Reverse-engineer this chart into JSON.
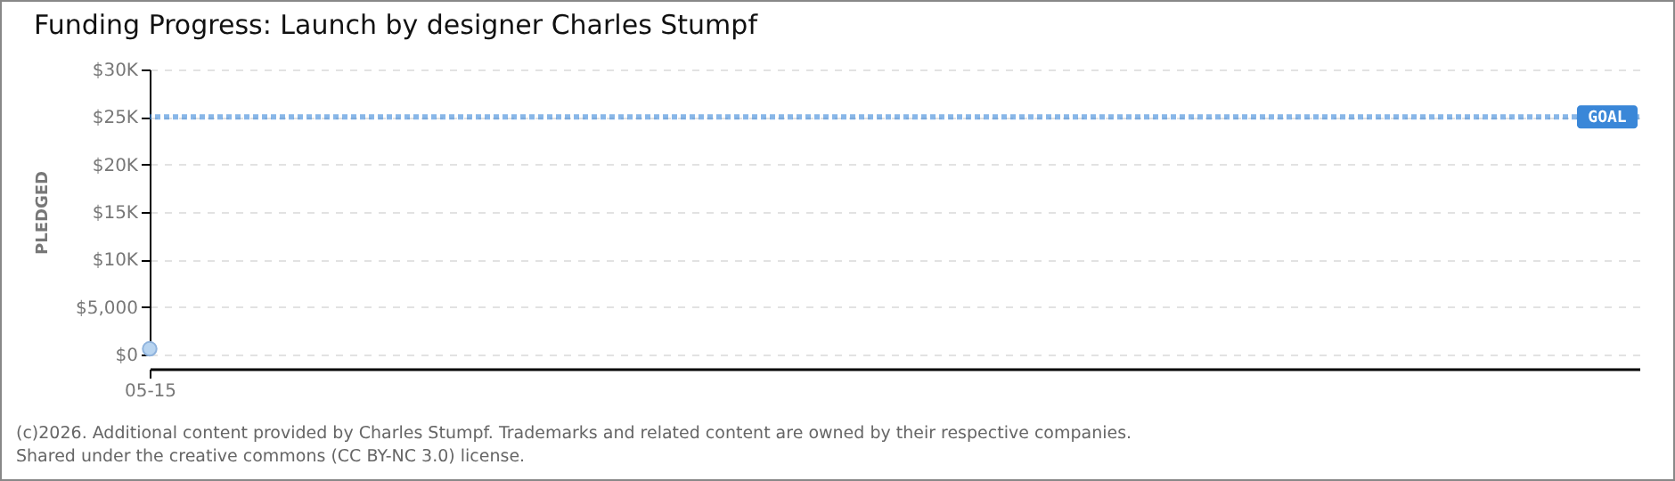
{
  "chart_data": {
    "type": "scatter",
    "title": "Funding Progress: Launch by designer Charles Stumpf",
    "ylabel": "PLEDGED",
    "categories": [
      "05-15"
    ],
    "series": [
      {
        "color": "#b8d4f0",
        "values": [
          600
        ]
      }
    ],
    "ylim": [
      0,
      30000
    ],
    "yticks": [
      {
        "value": 0,
        "label": "$0"
      },
      {
        "value": 5000,
        "label": "$5,000"
      },
      {
        "value": 10000,
        "label": "$10K"
      },
      {
        "value": 15000,
        "label": "$15K"
      },
      {
        "value": 20000,
        "label": "$20K"
      },
      {
        "value": 25000,
        "label": "$25K"
      },
      {
        "value": 30000,
        "label": "$30K"
      }
    ],
    "ref_lines": [
      {
        "axis": "y",
        "value": 25000,
        "label": "GOAL",
        "color": "#3a87d8",
        "line_style": "dotted"
      }
    ],
    "grid": "y",
    "marker": "circle",
    "legend": false,
    "annotations": [
      "(c)2026. Additional content provided by Charles Stumpf. Trademarks and related content are owned by their respective companies.",
      "Shared under the creative commons (CC BY-NC 3.0) license."
    ]
  }
}
